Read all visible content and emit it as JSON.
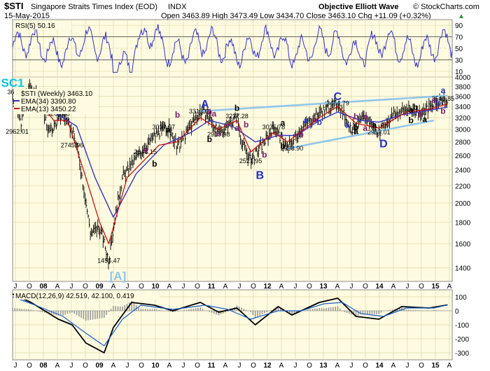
{
  "header": {
    "symbol": "$STI",
    "name": "Singapore Straits Times Index (EOD)",
    "exchange": "INDX",
    "date": "15-May-2015",
    "source": "Objective Elliott Wave",
    "copyright": "© StockCharts.com",
    "ohlc": "Open 3463.89  High 3473.49  Low 3434.70  Close 3463.10  Chg +11.09 (+0.32%)",
    "change_arrow": "▲"
  },
  "legend": {
    "rsi": "RSI(5) 50.16",
    "price": "$STI (Weekly) 3463.10",
    "ema34": "EMA(34) 3390.80",
    "ema13": "EMA(13) 3450.22",
    "macd": "MACD(12,26,9) 42.519, 42.100, 0.419"
  },
  "colors": {
    "panel_bg": "#fffbe0",
    "rsi_line": "#3333cc",
    "ema34": "#3333cc",
    "ema13": "#cc0000",
    "wave_black": "#000000",
    "wave_blue": "#1f2fcc",
    "wave_purple": "#7a1a6a",
    "cyan": "#00c8e6",
    "trend": "#8ec6ee"
  },
  "chart_data": [
    {
      "type": "line",
      "panel": "rsi",
      "ylim": [
        0,
        100
      ],
      "yticks": [
        10,
        30,
        50,
        70,
        90
      ],
      "value": 50.16
    },
    {
      "type": "line",
      "panel": "price",
      "yscale": "log",
      "ylim": [
        1300,
        4000
      ],
      "yticks": [
        1400,
        1600,
        1800,
        2000,
        2200,
        2400,
        2600,
        2800,
        3000,
        3200,
        3400,
        3600,
        3800,
        4000
      ],
      "xticks": [
        "J",
        "O",
        "08",
        "A",
        "J",
        "O",
        "09",
        "A",
        "J",
        "O",
        "10",
        "A",
        "J",
        "O",
        "11",
        "A",
        "J",
        "O",
        "12",
        "A",
        "J",
        "O",
        "13",
        "A",
        "J",
        "O",
        "14",
        "A",
        "J",
        "O",
        "15",
        "A"
      ],
      "x_start": "2007-06",
      "x_end": "2015-05",
      "path": [
        [
          "2007-06",
          3550
        ],
        [
          "2007-08",
          3100
        ],
        [
          "2007-09",
          3650
        ],
        [
          "2007-10",
          3800
        ],
        [
          "2007-12",
          3500
        ],
        [
          "2008-02",
          2950
        ],
        [
          "2008-05",
          3269.88
        ],
        [
          "2008-07",
          2950
        ],
        [
          "2008-08",
          2745.96
        ],
        [
          "2008-10",
          2000
        ],
        [
          "2008-11",
          1700
        ],
        [
          "2009-01",
          1750
        ],
        [
          "2009-03",
          1455.47
        ],
        [
          "2009-06",
          2300
        ],
        [
          "2009-10",
          2648.15
        ],
        [
          "2010-01",
          2900
        ],
        [
          "2010-04",
          3037.97
        ],
        [
          "2010-06",
          2700
        ],
        [
          "2010-11",
          3313.61
        ],
        [
          "2011-01",
          3200
        ],
        [
          "2011-03",
          2919.98
        ],
        [
          "2011-07",
          3227.28
        ],
        [
          "2011-08",
          2800
        ],
        [
          "2011-10",
          2521.95
        ],
        [
          "2012-01",
          2800
        ],
        [
          "2012-03",
          3035.78
        ],
        [
          "2012-06",
          2698.9
        ],
        [
          "2012-09",
          3000
        ],
        [
          "2013-01",
          3300
        ],
        [
          "2013-05",
          3464.79
        ],
        [
          "2013-08",
          3000
        ],
        [
          "2013-11",
          3200
        ],
        [
          "2014-02",
          2953.01
        ],
        [
          "2014-05",
          3250
        ],
        [
          "2014-08",
          3350
        ],
        [
          "2014-11",
          3300
        ],
        [
          "2015-02",
          3420
        ],
        [
          "2015-04",
          3549.85
        ],
        [
          "2015-05",
          3463.1
        ]
      ],
      "ema34": [
        [
          "2007-06",
          3400
        ],
        [
          "2007-10",
          3500
        ],
        [
          "2008-03",
          3300
        ],
        [
          "2008-08",
          3050
        ],
        [
          "2008-12",
          2300
        ],
        [
          "2009-04",
          1850
        ],
        [
          "2009-09",
          2350
        ],
        [
          "2010-03",
          2750
        ],
        [
          "2010-09",
          2950
        ],
        [
          "2011-01",
          3150
        ],
        [
          "2011-06",
          3050
        ],
        [
          "2011-11",
          2800
        ],
        [
          "2012-04",
          2900
        ],
        [
          "2012-08",
          2900
        ],
        [
          "2013-01",
          3150
        ],
        [
          "2013-05",
          3300
        ],
        [
          "2013-10",
          3150
        ],
        [
          "2014-02",
          3120
        ],
        [
          "2014-07",
          3250
        ],
        [
          "2015-01",
          3330
        ],
        [
          "2015-05",
          3390.8
        ]
      ],
      "ema13": [
        [
          "2007-06",
          3450
        ],
        [
          "2007-10",
          3700
        ],
        [
          "2008-03",
          3150
        ],
        [
          "2008-06",
          3150
        ],
        [
          "2008-10",
          2300
        ],
        [
          "2009-01",
          1800
        ],
        [
          "2009-03",
          1600
        ],
        [
          "2009-07",
          2300
        ],
        [
          "2010-02",
          2750
        ],
        [
          "2010-06",
          2800
        ],
        [
          "2010-11",
          3200
        ],
        [
          "2011-03",
          3000
        ],
        [
          "2011-07",
          3150
        ],
        [
          "2011-10",
          2650
        ],
        [
          "2012-03",
          2950
        ],
        [
          "2012-06",
          2800
        ],
        [
          "2013-01",
          3200
        ],
        [
          "2013-05",
          3400
        ],
        [
          "2013-09",
          3100
        ],
        [
          "2014-02",
          3020
        ],
        [
          "2014-08",
          3300
        ],
        [
          "2015-01",
          3350
        ],
        [
          "2015-05",
          3450.22
        ]
      ],
      "price_labels": [
        {
          "text": "3269.88",
          "t": "2008-04",
          "v": 3269.88
        },
        {
          "text": "2962.01",
          "t": "2007-07",
          "v": 2962.01
        },
        {
          "text": "2745.96",
          "t": "2008-07",
          "v": 2745.96
        },
        {
          "text": "1455.47",
          "t": "2009-03",
          "v": 1455.47
        },
        {
          "text": "2648.15",
          "t": "2009-11",
          "v": 2648.15
        },
        {
          "text": "3037.97",
          "t": "2010-03",
          "v": 3037.97
        },
        {
          "text": "3313.61",
          "t": "2010-11",
          "v": 3313.61
        },
        {
          "text": "2919.98",
          "t": "2011-03",
          "v": 2919.98
        },
        {
          "text": "3227.28",
          "t": "2011-07",
          "v": 3227.28
        },
        {
          "text": "2521.95",
          "t": "2011-10",
          "v": 2521.95
        },
        {
          "text": "3035.78",
          "t": "2012-03",
          "v": 3035.78
        },
        {
          "text": "2698.90",
          "t": "2012-07",
          "v": 2698.9
        },
        {
          "text": "3464.79",
          "t": "2013-05",
          "v": 3464.79
        },
        {
          "text": "2953.01",
          "t": "2014-02",
          "v": 2953.01
        },
        {
          "text": "3549.85",
          "t": "2015-04",
          "v": 3549.85
        },
        {
          "text": "368",
          "t": "2007-06",
          "v": 3680
        }
      ],
      "wave_labels": [
        {
          "text": "SC1",
          "t": "2007-06",
          "v": 4000,
          "style": "cyan"
        },
        {
          "text": "[A]",
          "t": "2009-05",
          "v": 1380,
          "style": "trend"
        },
        {
          "text": "A",
          "t": "2010-12",
          "v": 3430,
          "style": "blue"
        },
        {
          "text": "B",
          "t": "2011-12",
          "v": 2320,
          "style": "blue"
        },
        {
          "text": "C",
          "t": "2013-05",
          "v": 3580,
          "style": "blue"
        },
        {
          "text": "D",
          "t": "2014-03",
          "v": 2760,
          "style": "blue"
        },
        {
          "text": "a",
          "t": "2009-11",
          "v": 2680,
          "style": "purple"
        },
        {
          "text": "b",
          "t": "2010-01",
          "v": 2480,
          "style": "black"
        },
        {
          "text": "b",
          "t": "2010-06",
          "v": 3250,
          "style": "purple"
        },
        {
          "text": "a",
          "t": "2010-04",
          "v": 2990,
          "style": "black"
        },
        {
          "text": "b",
          "t": "2011-01",
          "v": 3300,
          "style": "purple"
        },
        {
          "text": "a",
          "t": "2011-02",
          "v": 3270,
          "style": "purple"
        },
        {
          "text": "b",
          "t": "2011-07",
          "v": 3370,
          "style": "black"
        },
        {
          "text": "b",
          "t": "2011-01",
          "v": 2840,
          "style": "black"
        },
        {
          "text": "a",
          "t": "2011-03",
          "v": 2940,
          "style": "purple"
        },
        {
          "text": "a",
          "t": "2011-07",
          "v": 3020,
          "style": "purple"
        },
        {
          "text": "b",
          "t": "2011-09",
          "v": 3080,
          "style": "purple"
        },
        {
          "text": "b",
          "t": "2012-01",
          "v": 2610,
          "style": "purple"
        },
        {
          "text": "a",
          "t": "2012-05",
          "v": 3110,
          "style": "black"
        },
        {
          "text": "b",
          "t": "2012-05",
          "v": 2740,
          "style": "black"
        },
        {
          "text": "a",
          "t": "2012-10",
          "v": 3150,
          "style": "blue"
        },
        {
          "text": "a",
          "t": "2012-12",
          "v": 3160,
          "style": "purple"
        },
        {
          "text": "b",
          "t": "2012-09",
          "v": 2920,
          "style": "purple"
        },
        {
          "text": "b",
          "t": "2013-01",
          "v": 3120,
          "style": "blue"
        },
        {
          "text": "a",
          "t": "2013-07",
          "v": 3080,
          "style": "blue"
        },
        {
          "text": "b",
          "t": "2013-09",
          "v": 3220,
          "style": "purple"
        },
        {
          "text": "b",
          "t": "2013-11",
          "v": 3220,
          "style": "purple"
        },
        {
          "text": "a",
          "t": "2013-11",
          "v": 3020,
          "style": "purple"
        },
        {
          "text": "b",
          "t": "2013-09",
          "v": 3030,
          "style": "black"
        },
        {
          "text": "a",
          "t": "2013-09",
          "v": 2970,
          "style": "black"
        },
        {
          "text": "a",
          "t": "2014-01",
          "v": 3070,
          "style": "black"
        },
        {
          "text": "a",
          "t": "2014-09",
          "v": 3340,
          "style": "black"
        },
        {
          "text": "b",
          "t": "2014-10",
          "v": 3390,
          "style": "black"
        },
        {
          "text": "a",
          "t": "2014-11",
          "v": 3270,
          "style": "purple"
        },
        {
          "text": "b",
          "t": "2014-09",
          "v": 3150,
          "style": "black"
        },
        {
          "text": "a",
          "t": "2014-12",
          "v": 3170,
          "style": "black"
        },
        {
          "text": "a",
          "t": "2015-02",
          "v": 3530,
          "style": "purple"
        },
        {
          "text": "b",
          "t": "2015-04",
          "v": 3320,
          "style": "purple"
        },
        {
          "text": "b",
          "t": "2015-03",
          "v": 3470,
          "style": "blue"
        },
        {
          "text": "a",
          "t": "2015-04",
          "v": 3720,
          "style": "blue"
        }
      ],
      "trend_lines": [
        {
          "from": [
            "2010-11",
            3313.61
          ],
          "to": [
            "2015-05",
            3610
          ]
        },
        {
          "from": [
            "2012-06",
            2698.9
          ],
          "to": [
            "2015-02",
            3150
          ]
        }
      ]
    },
    {
      "type": "line",
      "panel": "macd",
      "ylim": [
        -350,
        150
      ],
      "yticks": [
        100,
        0,
        -100,
        -200,
        -300
      ],
      "macd": [
        [
          "2007-06",
          120
        ],
        [
          "2007-10",
          60
        ],
        [
          "2008-04",
          -60
        ],
        [
          "2008-07",
          -100
        ],
        [
          "2008-10",
          -230
        ],
        [
          "2009-02",
          -300
        ],
        [
          "2009-04",
          -120
        ],
        [
          "2009-08",
          60
        ],
        [
          "2010-01",
          40
        ],
        [
          "2010-05",
          0
        ],
        [
          "2010-11",
          60
        ],
        [
          "2011-03",
          -10
        ],
        [
          "2011-07",
          20
        ],
        [
          "2011-11",
          -100
        ],
        [
          "2012-04",
          30
        ],
        [
          "2012-07",
          -30
        ],
        [
          "2013-01",
          60
        ],
        [
          "2013-05",
          90
        ],
        [
          "2013-09",
          -40
        ],
        [
          "2014-02",
          -60
        ],
        [
          "2014-07",
          30
        ],
        [
          "2015-01",
          20
        ],
        [
          "2015-05",
          42.519
        ]
      ],
      "signal": [
        [
          "2007-06",
          100
        ],
        [
          "2007-11",
          40
        ],
        [
          "2008-05",
          -40
        ],
        [
          "2008-10",
          -160
        ],
        [
          "2009-02",
          -250
        ],
        [
          "2009-06",
          -60
        ],
        [
          "2009-10",
          40
        ],
        [
          "2010-05",
          10
        ],
        [
          "2010-12",
          40
        ],
        [
          "2011-05",
          10
        ],
        [
          "2011-10",
          -60
        ],
        [
          "2012-04",
          0
        ],
        [
          "2012-09",
          0
        ],
        [
          "2013-02",
          50
        ],
        [
          "2013-06",
          60
        ],
        [
          "2013-10",
          -20
        ],
        [
          "2014-03",
          -40
        ],
        [
          "2014-08",
          20
        ],
        [
          "2015-02",
          20
        ],
        [
          "2015-05",
          42.1
        ]
      ]
    }
  ]
}
